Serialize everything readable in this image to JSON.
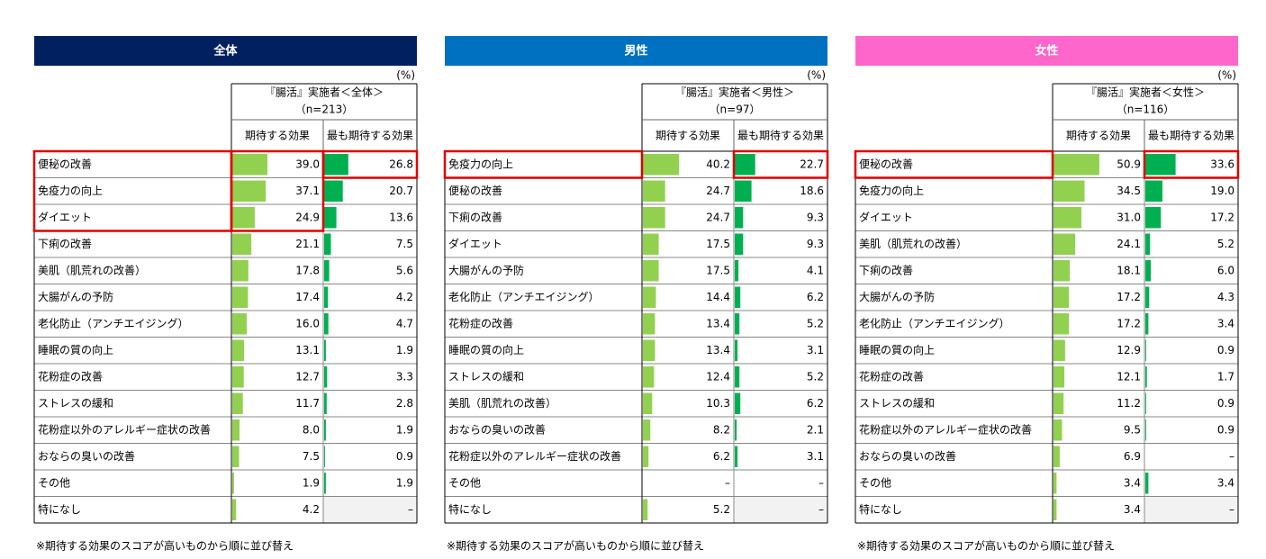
{
  "panels": [
    {
      "title": "全体",
      "color": "#002060",
      "unit": "(%)",
      "header_lines": [
        "『腸活』実施者＜全体＞",
        "（n=213）"
      ],
      "columns": [
        "期待する効果",
        "最も期待する効果"
      ],
      "rows": [
        [
          "便秘の改善",
          "39.0",
          "26.8"
        ],
        [
          "免疫力の向上",
          "37.1",
          "20.7"
        ],
        [
          "ダイエット",
          "24.9",
          "13.6"
        ],
        [
          "下痢の改善",
          "21.1",
          "7.5"
        ],
        [
          "美肌（肌荒れの改善）",
          "17.8",
          "5.6"
        ],
        [
          "大腸がんの予防",
          "17.4",
          "4.2"
        ],
        [
          "老化防止（アンチエイジング）",
          "16.0",
          "4.7"
        ],
        [
          "睡眠の質の向上",
          "13.1",
          "1.9"
        ],
        [
          "花粉症の改善",
          "12.7",
          "3.3"
        ],
        [
          "ストレスの緩和",
          "11.7",
          "2.8"
        ],
        [
          "花粉症以外のアレルギー症状の改善",
          "8.0",
          "1.9"
        ],
        [
          "おならの臭いの改善",
          "7.5",
          "0.9"
        ],
        [
          "その他",
          "1.9",
          "1.9"
        ],
        [
          "特になし",
          "4.2",
          "–"
        ]
      ],
      "footnote": "※期待する効果のスコアが高いものから順に並び替え"
    },
    {
      "title": "男性",
      "color": "#0070c0",
      "unit": "(%)",
      "header_lines": [
        "『腸活』実施者＜男性＞",
        "（n=97）"
      ],
      "columns": [
        "期待する効果",
        "最も期待する効果"
      ],
      "rows": [
        [
          "免疫力の向上",
          "40.2",
          "22.7"
        ],
        [
          "便秘の改善",
          "24.7",
          "18.6"
        ],
        [
          "下痢の改善",
          "24.7",
          "9.3"
        ],
        [
          "ダイエット",
          "17.5",
          "9.3"
        ],
        [
          "大腸がんの予防",
          "17.5",
          "4.1"
        ],
        [
          "老化防止（アンチエイジング）",
          "14.4",
          "6.2"
        ],
        [
          "花粉症の改善",
          "13.4",
          "5.2"
        ],
        [
          "睡眠の質の向上",
          "13.4",
          "3.1"
        ],
        [
          "ストレスの緩和",
          "12.4",
          "5.2"
        ],
        [
          "美肌（肌荒れの改善）",
          "10.3",
          "6.2"
        ],
        [
          "おならの臭いの改善",
          "8.2",
          "2.1"
        ],
        [
          "花粉症以外のアレルギー症状の改善",
          "6.2",
          "3.1"
        ],
        [
          "その他",
          "–",
          "–"
        ],
        [
          "特になし",
          "5.2",
          "–"
        ]
      ],
      "footnote": "※期待する効果のスコアが高いものから順に並び替え"
    },
    {
      "title": "女性",
      "color": "#ff66cc",
      "unit": "(%)",
      "header_lines": [
        "『腸活』実施者＜女性＞",
        "（n=116）"
      ],
      "columns": [
        "期待する効果",
        "最も期待する効果"
      ],
      "rows": [
        [
          "便秘の改善",
          "50.9",
          "33.6"
        ],
        [
          "免疫力の向上",
          "34.5",
          "19.0"
        ],
        [
          "ダイエット",
          "31.0",
          "17.2"
        ],
        [
          "美肌（肌荒れの改善）",
          "24.1",
          "5.2"
        ],
        [
          "下痢の改善",
          "18.1",
          "6.0"
        ],
        [
          "大腸がんの予防",
          "17.2",
          "4.3"
        ],
        [
          "老化防止（アンチエイジング）",
          "17.2",
          "3.4"
        ],
        [
          "睡眠の質の向上",
          "12.9",
          "0.9"
        ],
        [
          "花粉症の改善",
          "12.1",
          "1.7"
        ],
        [
          "ストレスの緩和",
          "11.2",
          "0.9"
        ],
        [
          "花粉症以外のアレルギー症状の改善",
          "9.5",
          "0.9"
        ],
        [
          "おならの臭いの改善",
          "6.9",
          "–"
        ],
        [
          "その他",
          "3.4",
          "3.4"
        ],
        [
          "特になし",
          "3.4",
          "–"
        ]
      ],
      "footnote": "※期待する効果のスコアが高いものから順に並び替え"
    }
  ],
  "bar_colors": [
    "#92d050",
    "#00b050"
  ]
}
